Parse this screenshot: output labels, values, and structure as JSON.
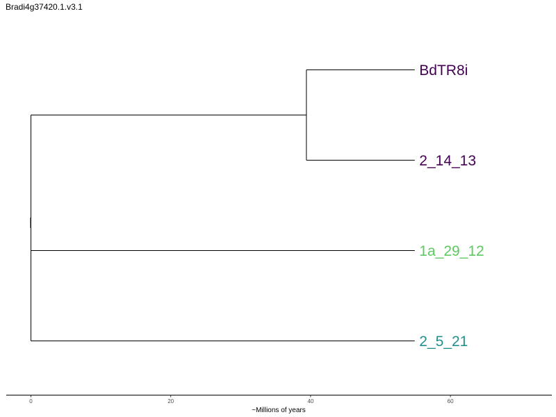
{
  "title": "Bradi4g37420.1.v3.1",
  "chart_data": {
    "type": "phylogenetic-tree",
    "xlabel": "~Millions of years",
    "x_ticks": [
      0,
      20,
      40,
      60
    ],
    "tips": [
      {
        "label": "BdTR8i",
        "color": "#440154"
      },
      {
        "label": "2_14_13",
        "color": "#440154"
      },
      {
        "label": "1a_29_12",
        "color": "#5ec962"
      },
      {
        "label": "2_5_21",
        "color": "#21918c"
      }
    ],
    "topology": "((BdTR8i,2_14_13),1a_29_12,2_5_21)",
    "branches": [
      {
        "from_age": 0,
        "to_age": 39.4,
        "note": "root to (BdTR8i, 2_14_13) node"
      },
      {
        "from_age": 39.4,
        "to_age": 54.9,
        "tip": "BdTR8i"
      },
      {
        "from_age": 39.4,
        "to_age": 54.9,
        "tip": "2_14_13"
      },
      {
        "from_age": 0,
        "to_age": 54.9,
        "tip": "1a_29_12"
      },
      {
        "from_age": 0,
        "to_age": 54.9,
        "tip": "2_5_21"
      }
    ]
  }
}
